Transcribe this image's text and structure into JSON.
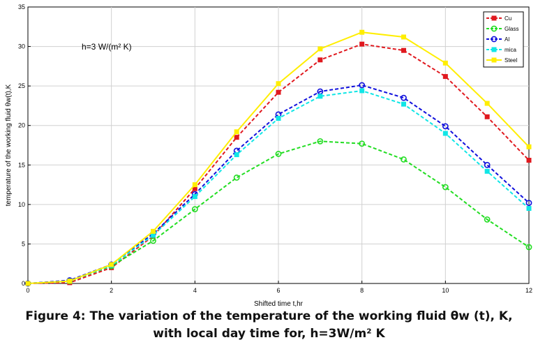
{
  "chart_data": {
    "type": "line",
    "xlabel": "Shifted time t,hr",
    "ylabel": "temperature of the working fluid θw(t),K",
    "xlim": [
      0,
      12
    ],
    "ylim": [
      0,
      35
    ],
    "xticks": [
      "0",
      "2",
      "4",
      "6",
      "8",
      "10",
      "12"
    ],
    "yticks": [
      "0",
      "5",
      "10",
      "15",
      "20",
      "25",
      "30",
      "35"
    ],
    "annotation": "h=3 W/(m² K)",
    "grid": true,
    "legend_position": "top-right",
    "x": [
      0,
      1,
      2,
      3,
      4,
      5,
      6,
      7,
      8,
      9,
      10,
      11,
      12
    ],
    "series": [
      {
        "name": "Cu",
        "color": "#e0191f",
        "dash": "5,3",
        "marker": "square",
        "values": [
          0,
          0.1,
          2.0,
          6.0,
          12.0,
          18.5,
          24.2,
          28.3,
          30.3,
          29.5,
          26.2,
          21.1,
          15.6
        ]
      },
      {
        "name": "Glass",
        "color": "#22dd22",
        "dash": "5,3",
        "marker": "circle",
        "values": [
          0,
          0.3,
          2.2,
          5.4,
          9.4,
          13.4,
          16.4,
          18.0,
          17.7,
          15.7,
          12.2,
          8.1,
          4.6
        ]
      },
      {
        "name": "Al",
        "color": "#1010dd",
        "dash": "5,3",
        "marker": "circle",
        "values": [
          0,
          0.4,
          2.4,
          6.3,
          11.3,
          16.8,
          21.4,
          24.3,
          25.1,
          23.5,
          19.9,
          15.0,
          10.2
        ]
      },
      {
        "name": "mica",
        "color": "#11e6e6",
        "dash": "5,3",
        "marker": "square",
        "values": [
          0,
          0.3,
          2.3,
          6.1,
          11.0,
          16.3,
          20.9,
          23.7,
          24.4,
          22.7,
          19.0,
          14.2,
          9.5
        ]
      },
      {
        "name": "Steel",
        "color": "#ffee00",
        "dash": "",
        "marker": "square",
        "values": [
          0,
          0.3,
          2.4,
          6.6,
          12.5,
          19.2,
          25.3,
          29.7,
          31.8,
          31.2,
          27.9,
          22.8,
          17.3
        ]
      }
    ]
  },
  "caption": {
    "line1": "Figure 4: The variation of the temperature of the working fluid θw (t), K,",
    "line2": "with local day time for, h=3W/m² K"
  }
}
